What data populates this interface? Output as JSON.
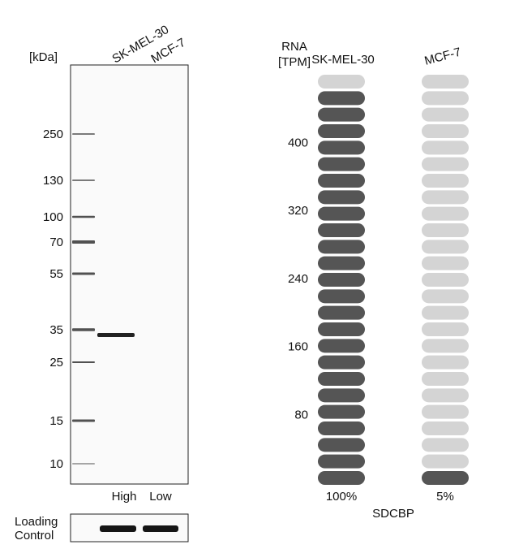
{
  "western_blot": {
    "unit_label": "[kDa]",
    "lanes": [
      "SK-MEL-30",
      "MCF-7"
    ],
    "markers": [
      250,
      130,
      100,
      70,
      55,
      35,
      25,
      15,
      10
    ],
    "expression": [
      "High",
      "Low"
    ],
    "loading_control": [
      "Loading",
      "Control"
    ]
  },
  "rna": {
    "axis_label": [
      "RNA",
      "[TPM]"
    ],
    "ticks": [
      400,
      320,
      240,
      160,
      80
    ],
    "pills": 25,
    "samples": [
      {
        "name": "SK-MEL-30",
        "filled": 24,
        "percent": "100%"
      },
      {
        "name": "MCF-7",
        "filled": 1,
        "percent": "5%"
      }
    ],
    "gene": "SDCBP"
  }
}
